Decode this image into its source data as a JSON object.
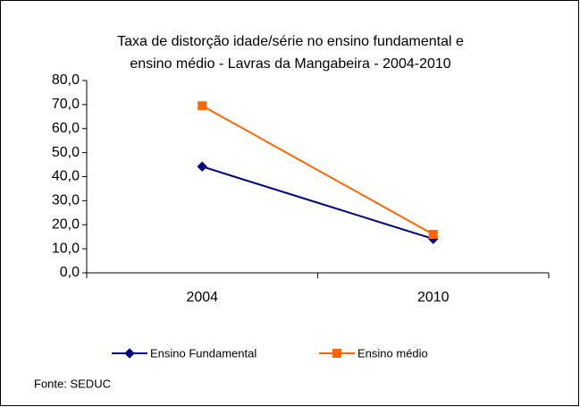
{
  "chart_data": {
    "type": "line",
    "title": [
      "Taxa de distorção idade/série no ensino fundamental e",
      "ensino médio - Lavras da Mangabeira -  2004-2010"
    ],
    "categories": [
      "2004",
      "2010"
    ],
    "series": [
      {
        "name": "Ensino Fundamental",
        "color": "#000080",
        "marker": "diamond",
        "values": [
          44.2,
          14.1
        ]
      },
      {
        "name": "Ensino médio",
        "color": "#ff6600",
        "marker": "square",
        "values": [
          69.5,
          16.0
        ]
      }
    ],
    "ylim": [
      0,
      80
    ],
    "yticks": [
      {
        "value": 0,
        "label": "0,0"
      },
      {
        "value": 10,
        "label": "10,0"
      },
      {
        "value": 20,
        "label": "20,0"
      },
      {
        "value": 30,
        "label": "30,0"
      },
      {
        "value": 40,
        "label": "40,0"
      },
      {
        "value": 50,
        "label": "50,0"
      },
      {
        "value": 60,
        "label": "60,0"
      },
      {
        "value": 70,
        "label": "70,0"
      },
      {
        "value": 80,
        "label": "80,0"
      }
    ],
    "legend": "bottom",
    "source": "Fonte: SEDUC"
  }
}
